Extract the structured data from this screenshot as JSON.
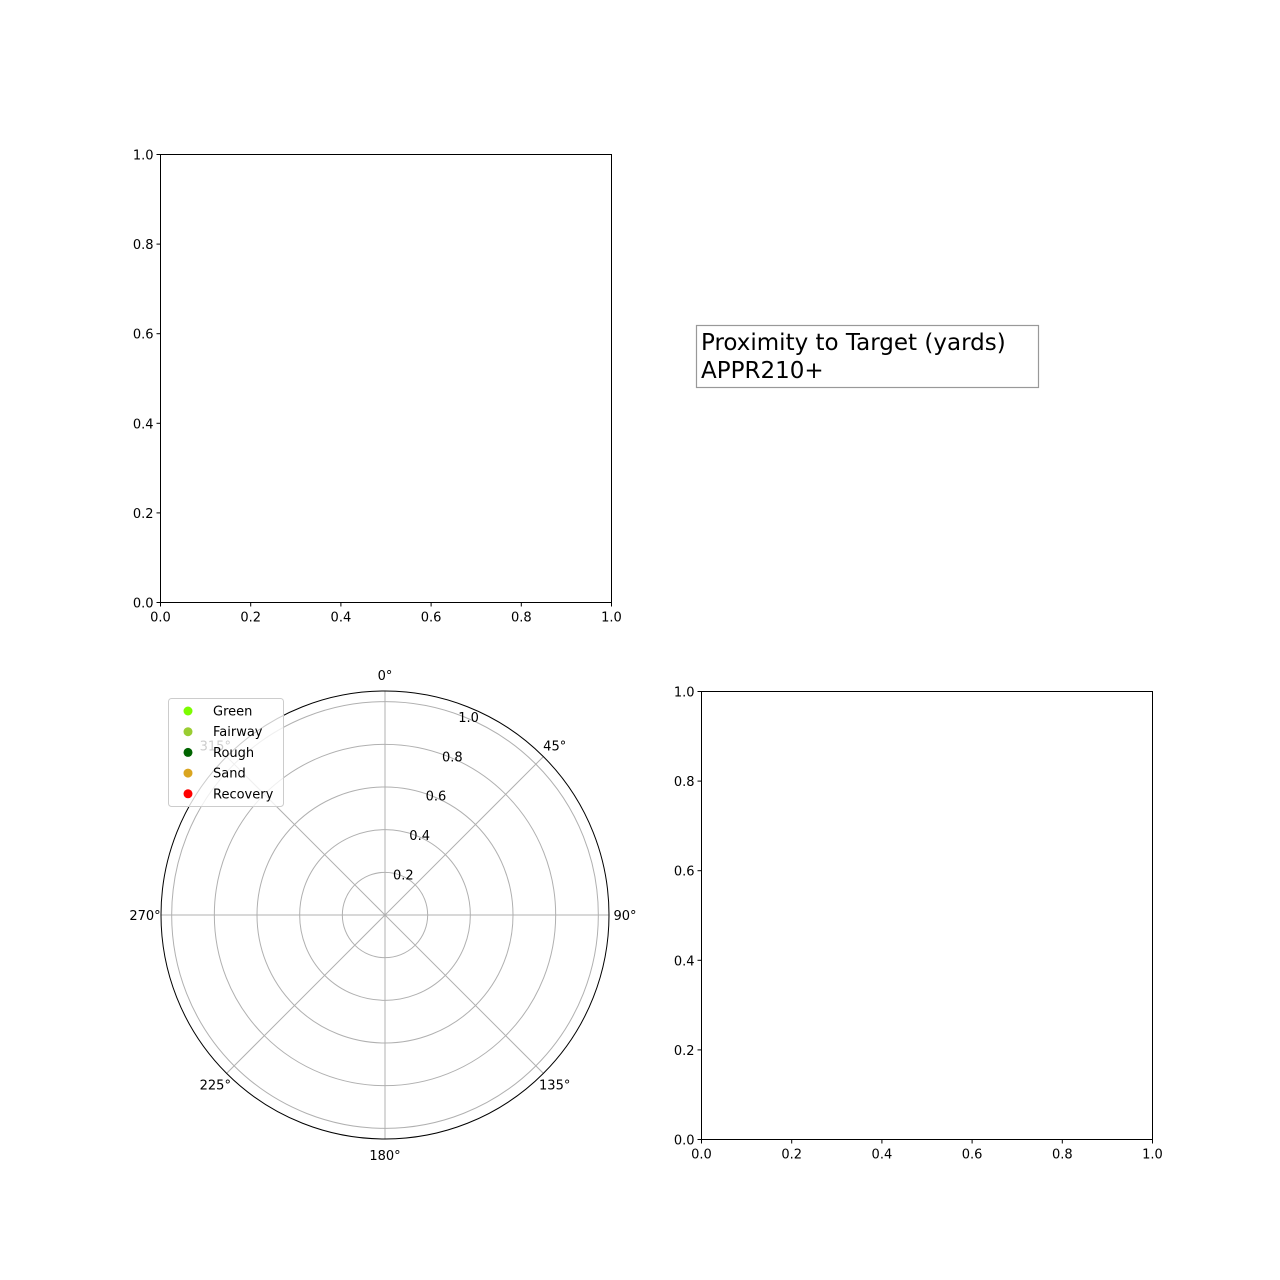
{
  "chart_data": [
    {
      "type": "scatter",
      "panel": "top-left",
      "title": "",
      "xlabel": "",
      "ylabel": "",
      "xlim": [
        0,
        1
      ],
      "ylim": [
        0,
        1
      ],
      "xticks": [
        "0.0",
        "0.2",
        "0.4",
        "0.6",
        "0.8",
        "1.0"
      ],
      "yticks": [
        "0.0",
        "0.2",
        "0.4",
        "0.6",
        "0.8",
        "1.0"
      ],
      "grid": false,
      "series": []
    },
    {
      "type": "text",
      "panel": "top-right",
      "text_lines": [
        "Proximity to Target (yards)",
        "APPR210+"
      ]
    },
    {
      "type": "scatter",
      "panel": "bottom-left",
      "projection": "polar",
      "theta_zero": "top",
      "theta_direction": "clockwise",
      "theta_ticks": [
        "0°",
        "45°",
        "90°",
        "135°",
        "180°",
        "225°",
        "270°",
        "315°"
      ],
      "rlim": [
        0,
        1.05
      ],
      "r_ticks": [
        "0.2",
        "0.4",
        "0.6",
        "0.8",
        "1.0"
      ],
      "grid": true,
      "legend_position": "upper-left",
      "legend": [
        {
          "name": "Green",
          "color": "#7cfc00"
        },
        {
          "name": "Fairway",
          "color": "#9acd32"
        },
        {
          "name": "Rough",
          "color": "#006400"
        },
        {
          "name": "Sand",
          "color": "#daa520"
        },
        {
          "name": "Recovery",
          "color": "#ff0000"
        }
      ],
      "series": []
    },
    {
      "type": "scatter",
      "panel": "bottom-right",
      "title": "",
      "xlabel": "",
      "ylabel": "",
      "xlim": [
        0,
        1
      ],
      "ylim": [
        0,
        1
      ],
      "xticks": [
        "0.0",
        "0.2",
        "0.4",
        "0.6",
        "0.8",
        "1.0"
      ],
      "yticks": [
        "0.0",
        "0.2",
        "0.4",
        "0.6",
        "0.8",
        "1.0"
      ],
      "grid": false,
      "series": []
    }
  ]
}
